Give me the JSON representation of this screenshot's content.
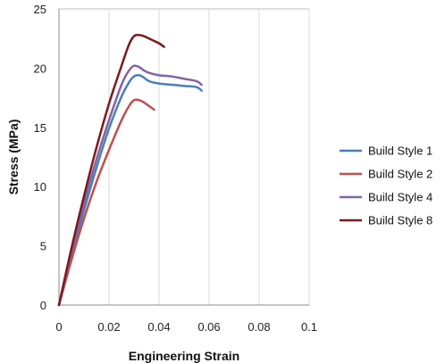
{
  "chart_data": {
    "type": "line",
    "xlabel": "Engineering Strain",
    "ylabel": "Stress (MPa)",
    "xlim": [
      0,
      0.1
    ],
    "ylim": [
      0,
      25
    ],
    "xticks": [
      "0",
      "0.02",
      "0.04",
      "0.06",
      "0.08",
      "0.1"
    ],
    "yticks": [
      "0",
      "5",
      "10",
      "15",
      "20",
      "25"
    ],
    "grid": "vertical",
    "legend_position": "right",
    "series": [
      {
        "name": "Build Style 1",
        "color": "#4a7ebb",
        "x": [
          0,
          0.005,
          0.01,
          0.015,
          0.02,
          0.025,
          0.028,
          0.03,
          0.032,
          0.034,
          0.036,
          0.04,
          0.045,
          0.05,
          0.055,
          0.057
        ],
        "y": [
          0,
          4.2,
          8.0,
          11.6,
          14.9,
          17.6,
          18.8,
          19.3,
          19.4,
          19.2,
          18.9,
          18.7,
          18.6,
          18.5,
          18.4,
          18.1
        ]
      },
      {
        "name": "Build Style 2",
        "color": "#c0504d",
        "x": [
          0,
          0.005,
          0.01,
          0.015,
          0.02,
          0.025,
          0.028,
          0.03,
          0.032,
          0.034,
          0.036,
          0.038
        ],
        "y": [
          0,
          3.8,
          7.3,
          10.4,
          13.1,
          15.6,
          16.8,
          17.3,
          17.3,
          17.1,
          16.8,
          16.5
        ]
      },
      {
        "name": "Build Style 4",
        "color": "#8064a2",
        "x": [
          0,
          0.005,
          0.01,
          0.015,
          0.02,
          0.025,
          0.028,
          0.03,
          0.032,
          0.034,
          0.036,
          0.04,
          0.045,
          0.05,
          0.055,
          0.057
        ],
        "y": [
          0,
          4.5,
          8.6,
          12.3,
          15.6,
          18.6,
          19.8,
          20.2,
          20.1,
          19.8,
          19.6,
          19.4,
          19.3,
          19.1,
          18.9,
          18.6
        ]
      },
      {
        "name": "Build Style 8",
        "color": "#7b1a1d",
        "x": [
          0,
          0.005,
          0.01,
          0.015,
          0.02,
          0.025,
          0.028,
          0.03,
          0.032,
          0.034,
          0.036,
          0.038,
          0.04,
          0.042
        ],
        "y": [
          0,
          4.8,
          9.2,
          13.3,
          17.0,
          20.2,
          22.0,
          22.7,
          22.8,
          22.7,
          22.5,
          22.3,
          22.1,
          21.8
        ]
      }
    ]
  }
}
